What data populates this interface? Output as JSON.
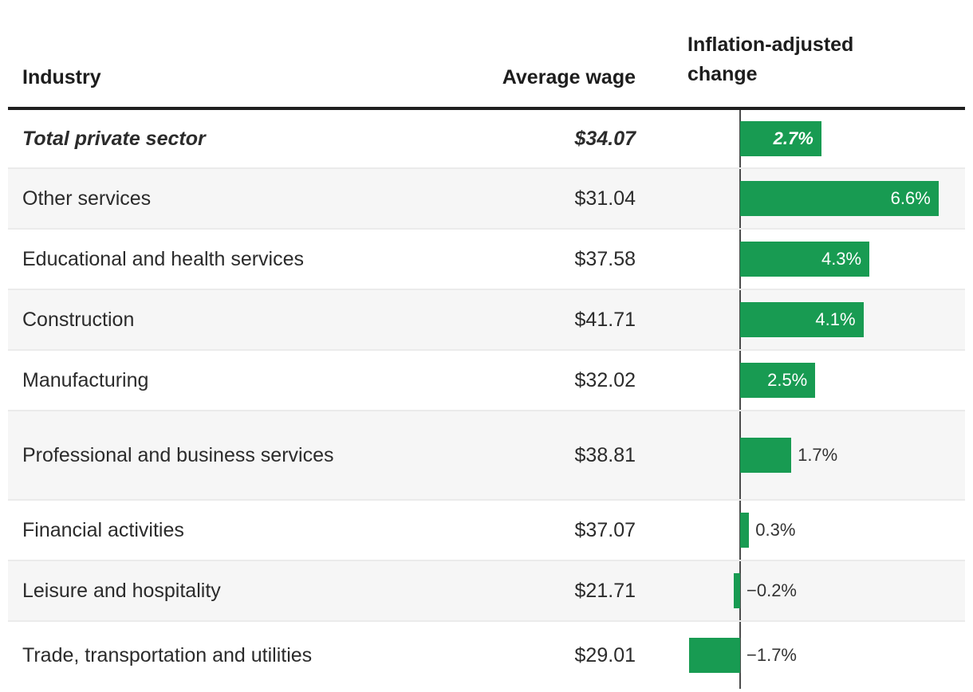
{
  "colors": {
    "bar_green": "#189b52",
    "row_stripe": "#f6f6f6",
    "row_separator": "#ebebeb",
    "header_rule": "#1f1f1f",
    "axis_line": "#4c4c4c",
    "bar_label_inside": "#ffffff",
    "bar_label_outside": "#333333"
  },
  "table": {
    "headers": {
      "industry": "Industry",
      "wage": "Average wage",
      "change": "Inflation-adjusted change"
    },
    "rows": [
      {
        "industry": "Total private sector",
        "wage": "$34.07",
        "value": 2.7,
        "label": "2.7%",
        "emphasis": true
      },
      {
        "industry": "Other services",
        "wage": "$31.04",
        "value": 6.6,
        "label": "6.6%",
        "emphasis": false
      },
      {
        "industry": "Educational and health services",
        "wage": "$37.58",
        "value": 4.3,
        "label": "4.3%",
        "emphasis": false
      },
      {
        "industry": "Construction",
        "wage": "$41.71",
        "value": 4.1,
        "label": "4.1%",
        "emphasis": false
      },
      {
        "industry": "Manufacturing",
        "wage": "$32.02",
        "value": 2.5,
        "label": "2.5%",
        "emphasis": false
      },
      {
        "industry": "Professional and business services",
        "wage": "$38.81",
        "value": 1.7,
        "label": "1.7%",
        "emphasis": false
      },
      {
        "industry": "Financial activities",
        "wage": "$37.07",
        "value": 0.3,
        "label": "0.3%",
        "emphasis": false
      },
      {
        "industry": "Leisure and hospitality",
        "wage": "$21.71",
        "value": -0.2,
        "label": "−0.2%",
        "emphasis": false
      },
      {
        "industry": "Trade, transportation and utilities",
        "wage": "$29.01",
        "value": -1.7,
        "label": "−1.7%",
        "emphasis": false
      }
    ]
  },
  "chart_data": {
    "type": "bar",
    "orientation": "horizontal",
    "title": "",
    "categories": [
      "Total private sector",
      "Other services",
      "Educational and health services",
      "Construction",
      "Manufacturing",
      "Professional and business services",
      "Financial activities",
      "Leisure and hospitality",
      "Trade, transportation and utilities"
    ],
    "series": [
      {
        "name": "Average wage",
        "unit": "$ per hour",
        "values": [
          34.07,
          31.04,
          37.58,
          41.71,
          32.02,
          38.81,
          37.07,
          21.71,
          29.01
        ]
      },
      {
        "name": "Inflation-adjusted change",
        "unit": "%",
        "values": [
          2.7,
          6.6,
          4.3,
          4.1,
          2.5,
          1.7,
          0.3,
          -0.2,
          -1.7
        ]
      }
    ],
    "data_labels": [
      "2.7%",
      "6.6%",
      "4.3%",
      "4.1%",
      "2.5%",
      "1.7%",
      "0.3%",
      "−0.2%",
      "−1.7%"
    ],
    "xlim": [
      -1.85,
      7.5
    ],
    "grid": false,
    "zero_axis": true,
    "legend_position": "none",
    "bar_color": "#189b52",
    "highlight_row": "Total private sector"
  }
}
